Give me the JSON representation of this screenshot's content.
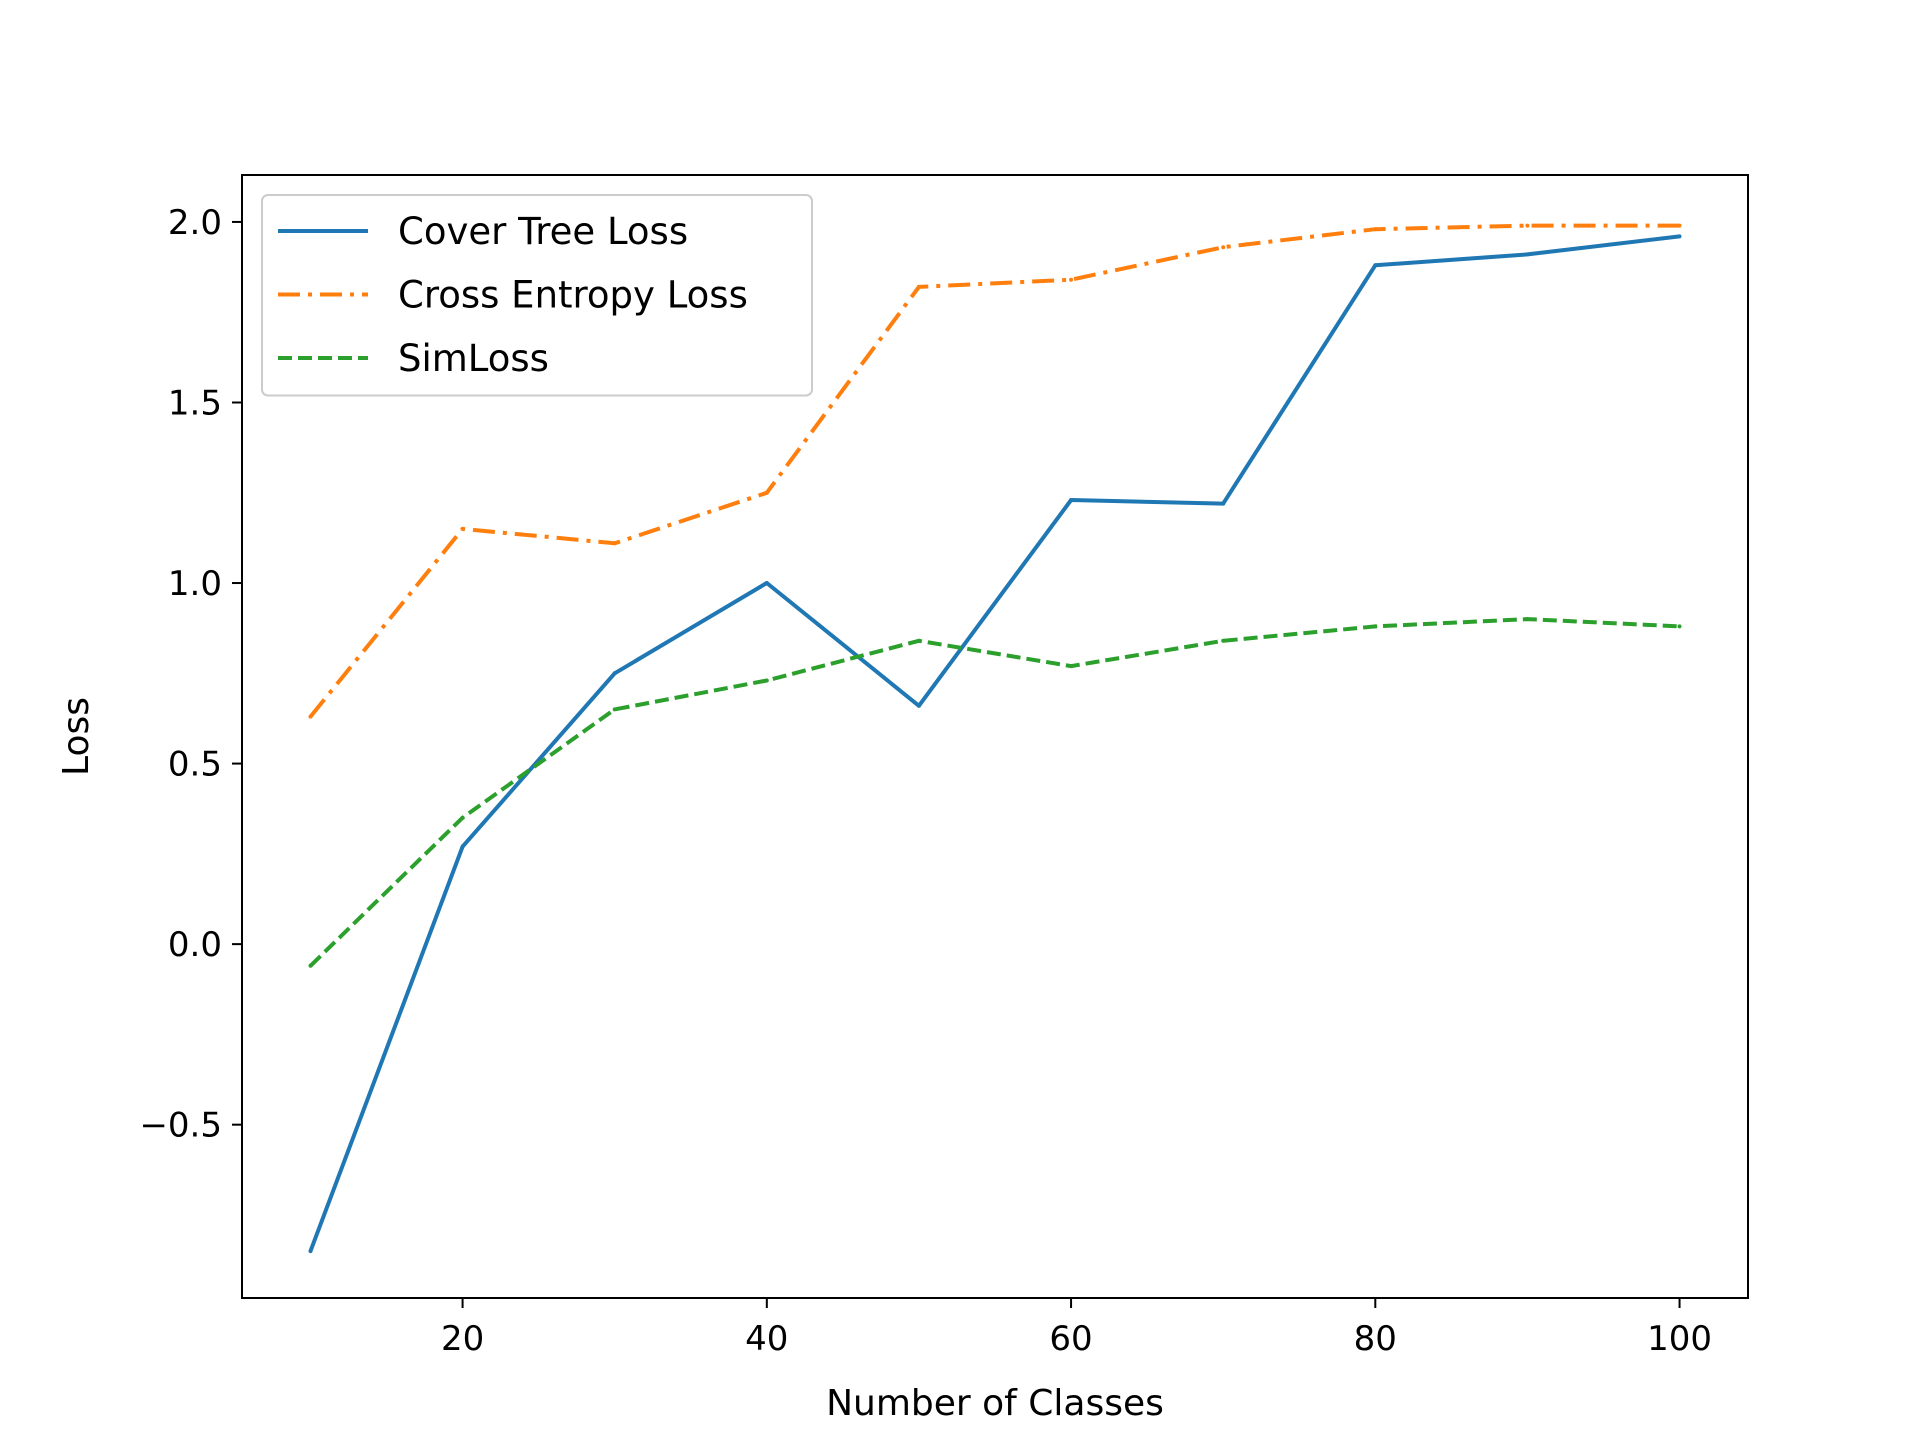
{
  "chart_data": {
    "type": "line",
    "title": "",
    "xlabel": "Number of Classes",
    "ylabel": "Loss",
    "x": [
      10,
      20,
      30,
      40,
      50,
      60,
      70,
      80,
      90,
      100
    ],
    "xlim": [
      5.5,
      104.5
    ],
    "ylim": [
      -0.98,
      2.13
    ],
    "xticks": [
      20,
      40,
      60,
      80,
      100
    ],
    "yticks": [
      -0.5,
      0.0,
      0.5,
      1.0,
      1.5,
      2.0
    ],
    "xtick_labels": [
      "20",
      "40",
      "60",
      "80",
      "100"
    ],
    "ytick_labels": [
      "−0.5",
      "0.0",
      "0.5",
      "1.0",
      "1.5",
      "2.0"
    ],
    "grid": false,
    "legend_position": "upper-left",
    "series": [
      {
        "name": "Cover Tree Loss",
        "color": "#1f77b4",
        "dash": "solid",
        "values": [
          -0.85,
          0.27,
          0.75,
          1.0,
          0.66,
          1.23,
          1.22,
          1.88,
          1.91,
          1.96
        ]
      },
      {
        "name": "Cross Entropy Loss",
        "color": "#ff7f0e",
        "dash": "dashdot",
        "values": [
          0.63,
          1.15,
          1.11,
          1.25,
          1.82,
          1.84,
          1.93,
          1.98,
          1.99,
          1.99
        ]
      },
      {
        "name": "SimLoss",
        "color": "#2ca02c",
        "dash": "dashed",
        "values": [
          -0.06,
          0.35,
          0.65,
          0.73,
          0.84,
          0.77,
          0.84,
          0.88,
          0.9,
          0.88
        ]
      }
    ]
  }
}
